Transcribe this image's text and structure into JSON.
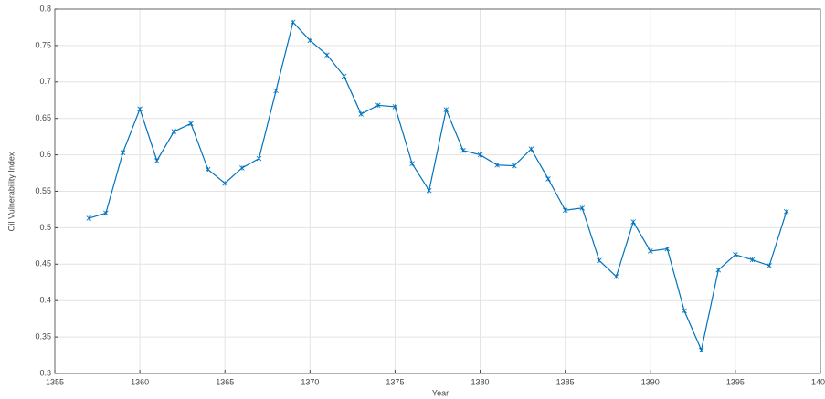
{
  "chart_data": {
    "type": "line",
    "xlabel": "Year",
    "ylabel": "Oil Vulnerability Index",
    "x": [
      1357,
      1358,
      1359,
      1360,
      1361,
      1362,
      1363,
      1364,
      1365,
      1366,
      1367,
      1368,
      1369,
      1370,
      1371,
      1372,
      1373,
      1374,
      1375,
      1376,
      1377,
      1378,
      1379,
      1380,
      1381,
      1382,
      1383,
      1384,
      1385,
      1386,
      1387,
      1388,
      1389,
      1390,
      1391,
      1392,
      1393,
      1394,
      1395,
      1396,
      1397,
      1398
    ],
    "series": [
      {
        "color": "#0072bd",
        "values": [
          0.513,
          0.52,
          0.603,
          0.663,
          0.592,
          0.632,
          0.643,
          0.58,
          0.561,
          0.582,
          0.595,
          0.688,
          0.782,
          0.757,
          0.737,
          0.708,
          0.656,
          0.668,
          0.666,
          0.588,
          0.551,
          0.662,
          0.606,
          0.6,
          0.586,
          0.585,
          0.608,
          0.567,
          0.524,
          0.527,
          0.455,
          0.433,
          0.508,
          0.468,
          0.471,
          0.386,
          0.332,
          0.442,
          0.463,
          0.456,
          0.448,
          0.522
        ]
      }
    ],
    "xlim": [
      1355,
      1400
    ],
    "xticks": [
      1355,
      1360,
      1365,
      1370,
      1375,
      1380,
      1385,
      1390,
      1395,
      1400
    ],
    "ylim": [
      0.3,
      0.8
    ],
    "yticks": [
      0.3,
      0.35,
      0.4,
      0.45,
      0.5,
      0.55,
      0.6,
      0.65,
      0.7,
      0.75,
      0.8
    ],
    "grid": true
  }
}
